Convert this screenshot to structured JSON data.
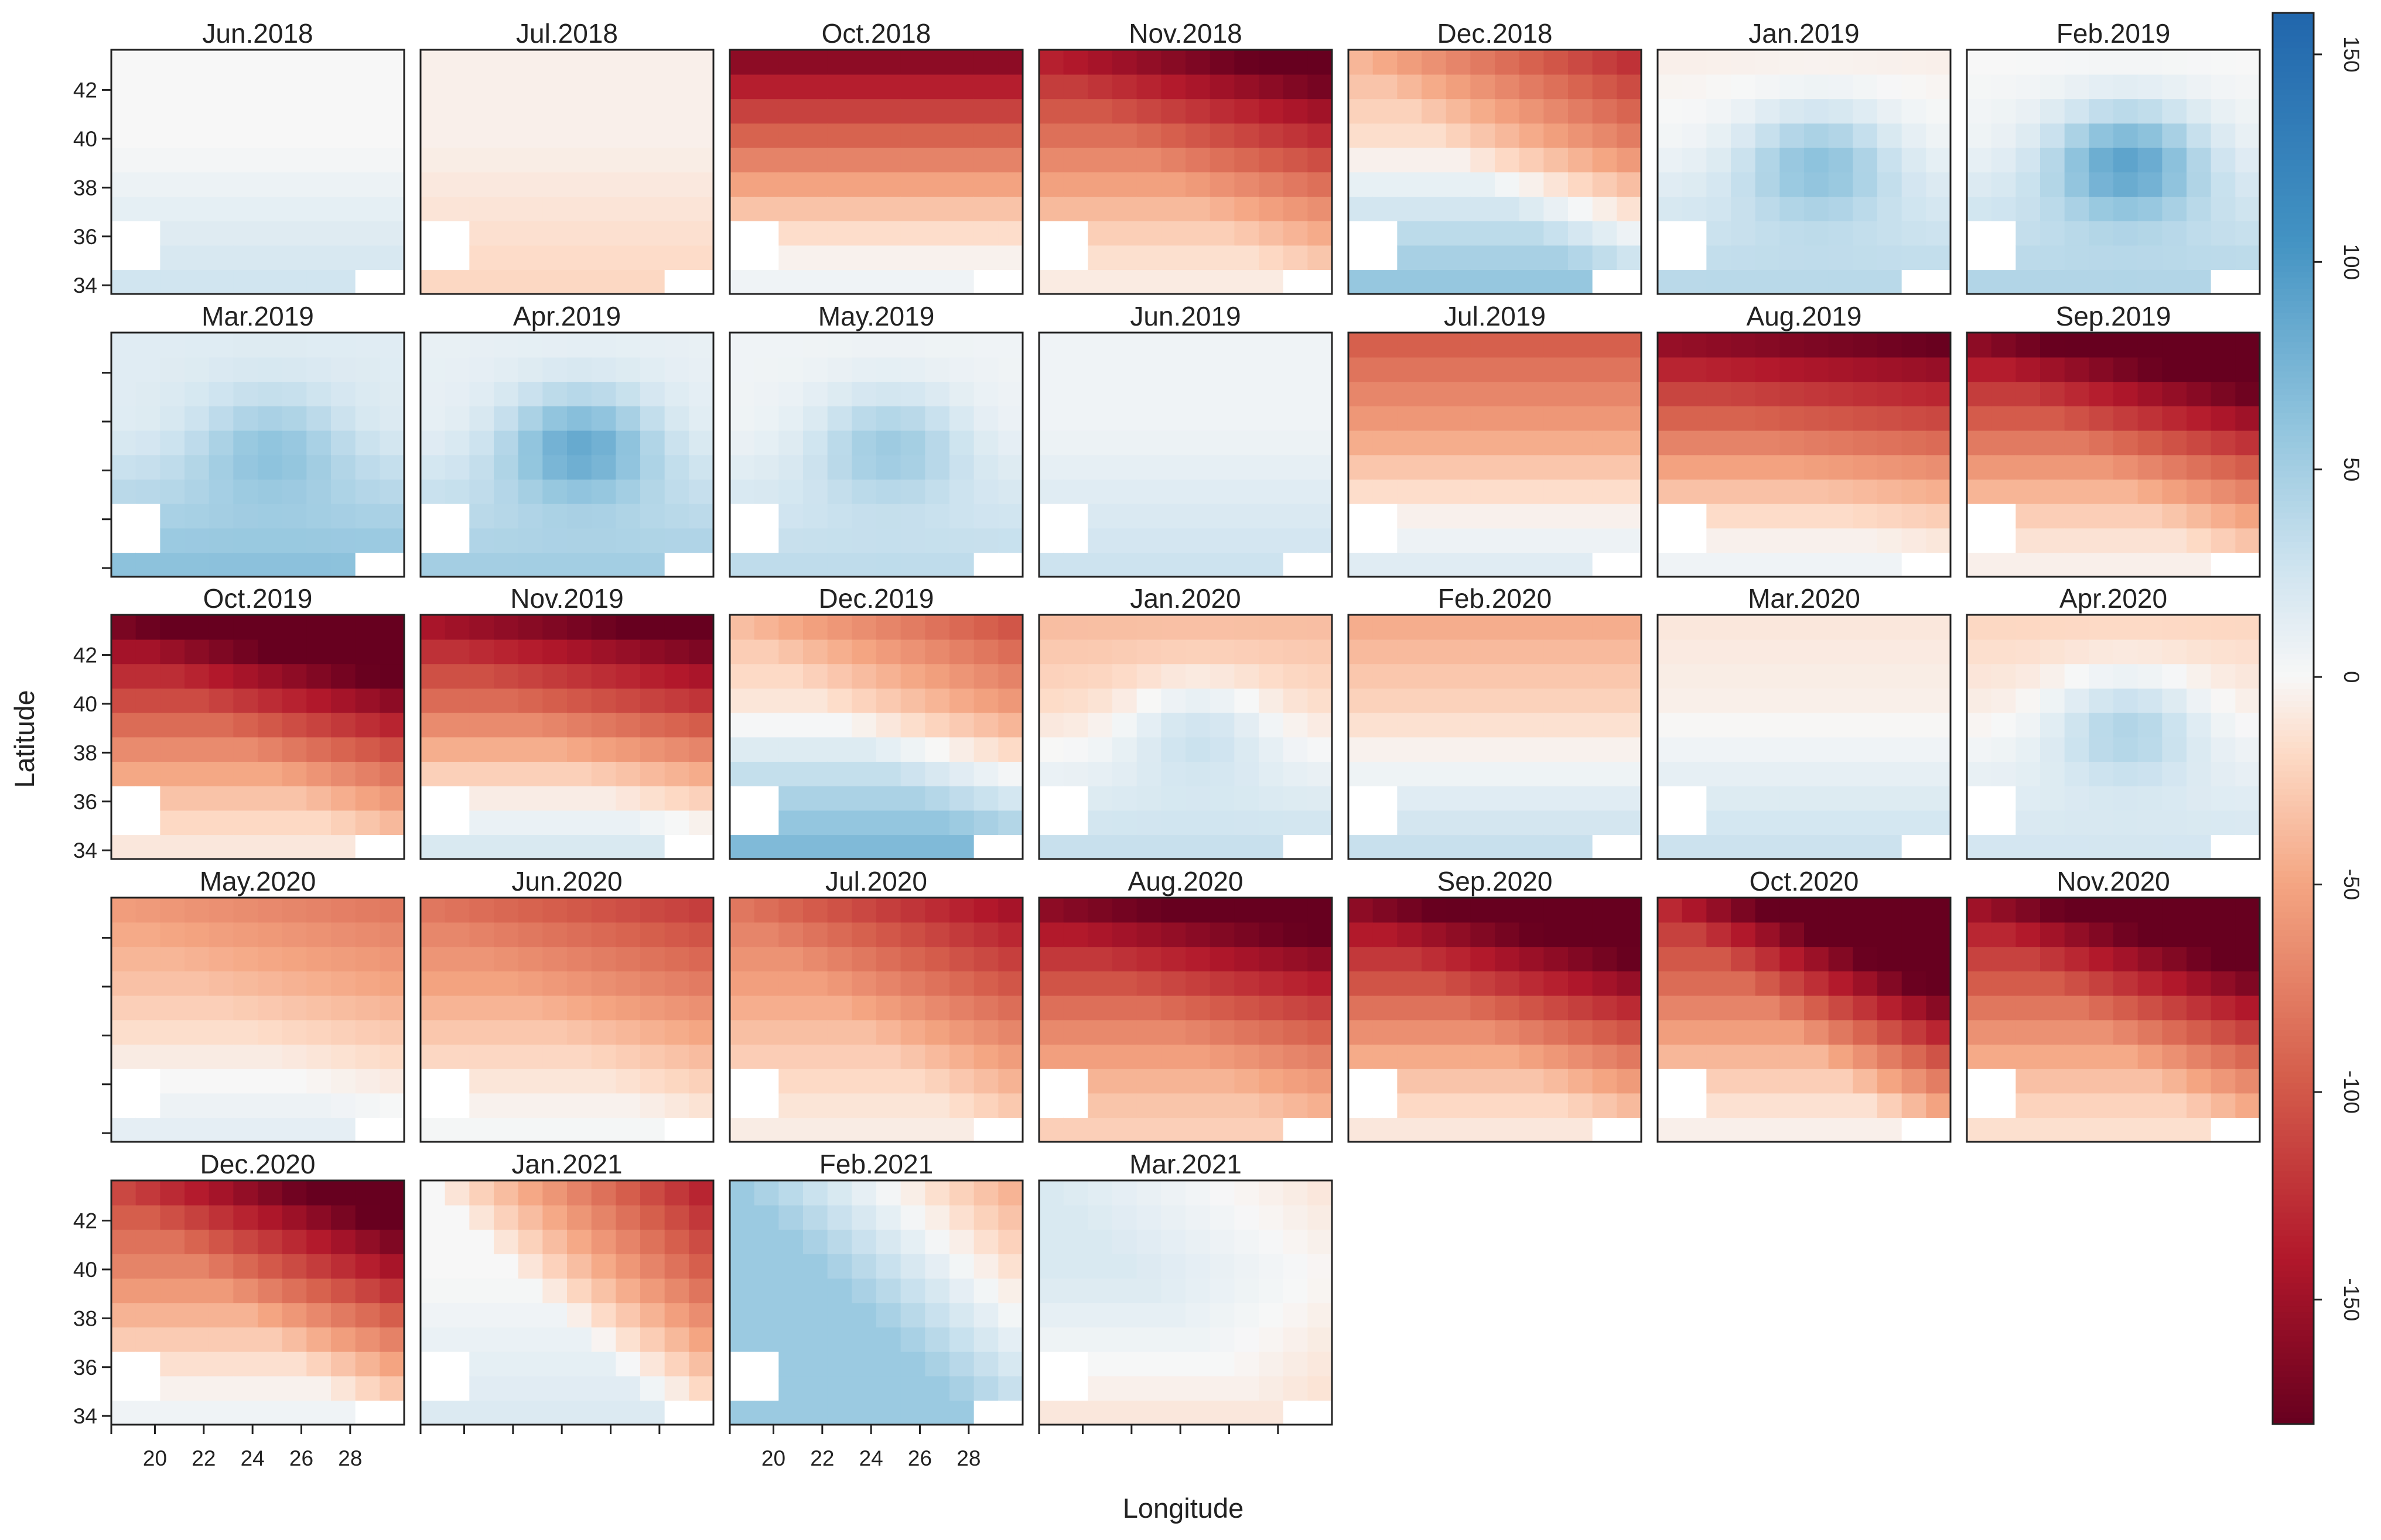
{
  "chart_data": {
    "type": "heatmap",
    "xlabel": "Longitude",
    "ylabel": "Latitude",
    "x_ticks": [
      "20",
      "22",
      "24",
      "26",
      "28"
    ],
    "y_ticks": [
      "34",
      "36",
      "38",
      "40",
      "42"
    ],
    "colorbar": {
      "ticks": [
        "150",
        "100",
        "50",
        "0",
        "-50",
        "-100",
        "-150"
      ],
      "range": [
        -180,
        160
      ],
      "palette": "RdBu"
    },
    "panels": [
      {
        "title": "Jun.2018",
        "pattern": [
          0,
          25,
          0,
          0,
          0
        ]
      },
      {
        "title": "Jul.2018",
        "pattern": [
          -5,
          -15,
          0,
          0,
          0
        ]
      },
      {
        "title": "Oct.2018",
        "pattern": [
          -20,
          25,
          -140,
          0,
          0
        ]
      },
      {
        "title": "Nov.2018",
        "pattern": [
          -30,
          22,
          -105,
          -50,
          0
        ]
      },
      {
        "title": "Dec.2018",
        "pattern": [
          10,
          48,
          -50,
          -70,
          0
        ]
      },
      {
        "title": "Jan.2019",
        "pattern": [
          10,
          28,
          -15,
          0,
          55
        ]
      },
      {
        "title": "Feb.2019",
        "pattern": [
          10,
          32,
          -10,
          0,
          80
        ]
      },
      {
        "title": "Mar.2019",
        "pattern": [
          15,
          48,
          0,
          0,
          40
        ]
      },
      {
        "title": "Apr.2019",
        "pattern": [
          10,
          40,
          0,
          0,
          70
        ]
      },
      {
        "title": "May.2019",
        "pattern": [
          5,
          30,
          0,
          0,
          45
        ]
      },
      {
        "title": "Jun.2019",
        "pattern": [
          5,
          22,
          0,
          0,
          0
        ]
      },
      {
        "title": "Jul.2019",
        "pattern": [
          -20,
          35,
          -75,
          0,
          0
        ]
      },
      {
        "title": "Aug.2019",
        "pattern": [
          -25,
          30,
          -130,
          -20,
          0
        ]
      },
      {
        "title": "Sep.2019",
        "pattern": [
          -30,
          25,
          -130,
          -60,
          0
        ]
      },
      {
        "title": "Oct.2019",
        "pattern": [
          -40,
          30,
          -130,
          -60,
          0
        ]
      },
      {
        "title": "Nov.2019",
        "pattern": [
          -25,
          45,
          -120,
          -40,
          0
        ]
      },
      {
        "title": "Dec.2019",
        "pattern": [
          15,
          55,
          -50,
          -55,
          0
        ]
      },
      {
        "title": "Jan.2020",
        "pattern": [
          0,
          30,
          -35,
          0,
          35
        ]
      },
      {
        "title": "Feb.2020",
        "pattern": [
          0,
          30,
          -45,
          0,
          0
        ]
      },
      {
        "title": "Mar.2020",
        "pattern": [
          0,
          28,
          -10,
          0,
          0
        ]
      },
      {
        "title": "Apr.2020",
        "pattern": [
          5,
          18,
          -25,
          0,
          45
        ]
      },
      {
        "title": "May.2020",
        "pattern": [
          -10,
          22,
          -45,
          -20,
          0
        ]
      },
      {
        "title": "Jun.2020",
        "pattern": [
          -20,
          22,
          -60,
          -30,
          0
        ]
      },
      {
        "title": "Jul.2020",
        "pattern": [
          -25,
          18,
          -55,
          -55,
          0
        ]
      },
      {
        "title": "Aug.2020",
        "pattern": [
          -40,
          15,
          -120,
          -40,
          0
        ]
      },
      {
        "title": "Sep.2020",
        "pattern": [
          -40,
          30,
          -120,
          -60,
          0
        ]
      },
      {
        "title": "Oct.2020",
        "pattern": [
          -40,
          35,
          -90,
          -120,
          0
        ]
      },
      {
        "title": "Nov.2020",
        "pattern": [
          -40,
          25,
          -110,
          -80,
          0
        ]
      },
      {
        "title": "Dec.2020",
        "pattern": [
          -30,
          35,
          -80,
          -85,
          0
        ]
      },
      {
        "title": "Jan.2021",
        "pattern": [
          0,
          18,
          0,
          -110,
          0
        ]
      },
      {
        "title": "Feb.2021",
        "pattern": [
          55,
          0,
          0,
          -80,
          0
        ]
      },
      {
        "title": "Mar.2021",
        "pattern": [
          20,
          -30,
          0,
          -25,
          0
        ]
      }
    ],
    "grid": false,
    "legend": "right"
  }
}
